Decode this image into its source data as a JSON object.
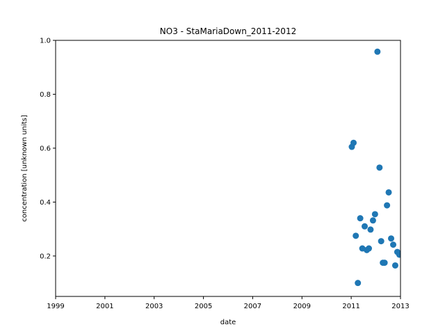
{
  "chart_data": {
    "type": "scatter",
    "title": "NO3 - StaMariaDown_2011-2012",
    "xlabel": "date",
    "ylabel": "concentration [unknown units]",
    "xlim": [
      "1999-01-01",
      "2013-01-01"
    ],
    "ylim": [
      0.05,
      1.0
    ],
    "x_ticks": [
      "1999",
      "2001",
      "2003",
      "2005",
      "2007",
      "2009",
      "2011",
      "2013"
    ],
    "y_ticks": [
      "0.2",
      "0.4",
      "0.6",
      "0.8",
      "1.0"
    ],
    "grid": false,
    "marker_color": "#1f77b4",
    "points": [
      {
        "x": "2011-01-10",
        "y": 0.605
      },
      {
        "x": "2011-02-05",
        "y": 0.62
      },
      {
        "x": "2011-03-10",
        "y": 0.275
      },
      {
        "x": "2011-04-10",
        "y": 0.1
      },
      {
        "x": "2011-05-15",
        "y": 0.34
      },
      {
        "x": "2011-06-15",
        "y": 0.228
      },
      {
        "x": "2011-07-20",
        "y": 0.31
      },
      {
        "x": "2011-08-20",
        "y": 0.222
      },
      {
        "x": "2011-09-20",
        "y": 0.228
      },
      {
        "x": "2011-10-15",
        "y": 0.298
      },
      {
        "x": "2011-11-20",
        "y": 0.332
      },
      {
        "x": "2011-12-20",
        "y": 0.355
      },
      {
        "x": "2012-01-25",
        "y": 0.958
      },
      {
        "x": "2012-02-25",
        "y": 0.528
      },
      {
        "x": "2012-03-20",
        "y": 0.255
      },
      {
        "x": "2012-04-15",
        "y": 0.175
      },
      {
        "x": "2012-05-10",
        "y": 0.175
      },
      {
        "x": "2012-06-15",
        "y": 0.388
      },
      {
        "x": "2012-07-10",
        "y": 0.436
      },
      {
        "x": "2012-08-15",
        "y": 0.265
      },
      {
        "x": "2012-09-15",
        "y": 0.242
      },
      {
        "x": "2012-10-15",
        "y": 0.165
      },
      {
        "x": "2012-11-15",
        "y": 0.215
      },
      {
        "x": "2012-12-15",
        "y": 0.205
      }
    ]
  }
}
